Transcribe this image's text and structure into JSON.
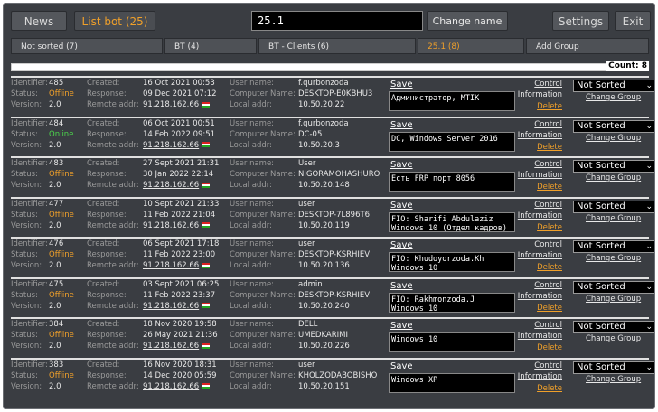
{
  "topbar": {
    "news": "News",
    "list_bot": "List bot (25)",
    "name_value": "25.1",
    "change_name": "Change name",
    "settings": "Settings",
    "exit": "Exit"
  },
  "tabs": [
    {
      "label": "Not sorted (7)"
    },
    {
      "label": "BT (4)"
    },
    {
      "label": "BT - Clients (6)"
    },
    {
      "label": "25.1 (8)",
      "active": true
    },
    {
      "label": "Add Group"
    }
  ],
  "count": "Count: 8",
  "labels": {
    "identifier": "Identifier:",
    "status": "Status:",
    "version": "Version:",
    "created": "Created:",
    "response": "Response:",
    "remote_addr": "Remote addr:",
    "user_name": "User name:",
    "computer_name": "Computer Name:",
    "local_addr": "Local addr:",
    "save": "Save",
    "control": "Control",
    "information": "Information",
    "delete": "Delete",
    "change_group": "Change Group",
    "group_select": "Not Sorted"
  },
  "rows": [
    {
      "id": "485",
      "status": "Offline",
      "version": "2.0",
      "created": "16 Oct 2021 00:53",
      "response": "09 Dec 2021 07:12",
      "remote": "91.218.162.66",
      "user": "f.qurbonzoda",
      "computer": "DESKTOP-E0KBHU3",
      "local": "10.50.20.22",
      "desc": "Администратор, MTIK"
    },
    {
      "id": "484",
      "status": "Online",
      "version": "2.0",
      "created": "06 Oct 2021 00:51",
      "response": "14 Feb 2022 09:51",
      "remote": "91.218.162.66",
      "user": "f.qurbonzoda",
      "computer": "DC-05",
      "local": "10.50.20.3",
      "desc": "DC, Windows Server 2016"
    },
    {
      "id": "483",
      "status": "Offline",
      "version": "2.0",
      "created": "27 Sept 2021 21:31",
      "response": "30 Jan 2022 22:14",
      "remote": "91.218.162.66",
      "user": "User",
      "computer": "NIGORAMOHASHURO",
      "local": "10.50.20.148",
      "desc": "Есть FRP порт 8056"
    },
    {
      "id": "477",
      "status": "Offline",
      "version": "2.0",
      "created": "10 Sept 2021 21:33",
      "response": "11 Feb 2022 21:04",
      "remote": "91.218.162.66",
      "user": "user",
      "computer": "DESKTOP-7L896T6",
      "local": "10.50.20.119",
      "desc": "FIO: Sharifi Abdulaziz\nWindows 10 (Отдел кадров)"
    },
    {
      "id": "476",
      "status": "Offline",
      "version": "2.0",
      "created": "06 Sept 2021 17:18",
      "response": "11 Feb 2022 23:00",
      "remote": "91.218.162.66",
      "user": "user",
      "computer": "DESKTOP-KSRHIEV",
      "local": "10.50.20.136",
      "desc": "FIO: Khudoyorzoda.Kh\nWindows 10"
    },
    {
      "id": "475",
      "status": "Offline",
      "version": "2.0",
      "created": "03 Sept 2021 06:25",
      "response": "11 Feb 2022 23:37",
      "remote": "91.218.162.66",
      "user": "admin",
      "computer": "DESKTOP-KSRHIEV",
      "local": "10.50.20.240",
      "desc": "FIO: Rakhmonzoda.J\nWindows 10"
    },
    {
      "id": "384",
      "status": "Offline",
      "version": "2.0",
      "created": "18 Nov 2020 19:58",
      "response": "26 May 2021 21:36",
      "remote": "91.218.162.66",
      "user": "DELL",
      "computer": "UMEDKARIMI",
      "local": "10.50.20.226",
      "desc": "Windows 10"
    },
    {
      "id": "383",
      "status": "Offline",
      "version": "2.0",
      "created": "16 Nov 2020 18:31",
      "response": "14 Dec 2020 05:59",
      "remote": "91.218.162.66",
      "user": "user",
      "computer": "KHOLZODABOBISHO",
      "local": "10.50.20.151",
      "desc": "Windows XP"
    }
  ]
}
